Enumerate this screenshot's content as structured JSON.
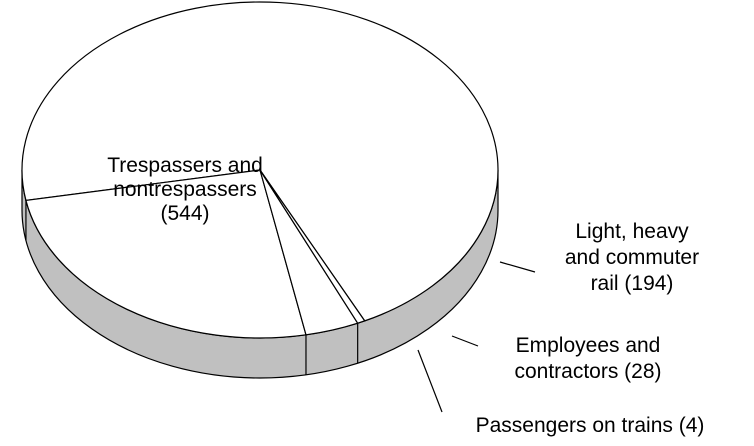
{
  "chart_data": {
    "type": "pie",
    "style": "3d",
    "title": "",
    "slices": [
      {
        "label_lines": [
          "Trespassers and",
          "nontrespassers",
          "(544)"
        ],
        "value": 544
      },
      {
        "label_lines": [
          "Light, heavy",
          "and commuter",
          "rail (194)"
        ],
        "value": 194
      },
      {
        "label_lines": [
          "Employees and",
          "contractors (28)"
        ],
        "value": 28
      },
      {
        "label_lines": [
          "Passengers on trains (4)"
        ],
        "value": 4
      }
    ],
    "colors": {
      "top": "#ffffff",
      "side": "#c0c0c0",
      "outline": "#000000"
    }
  }
}
